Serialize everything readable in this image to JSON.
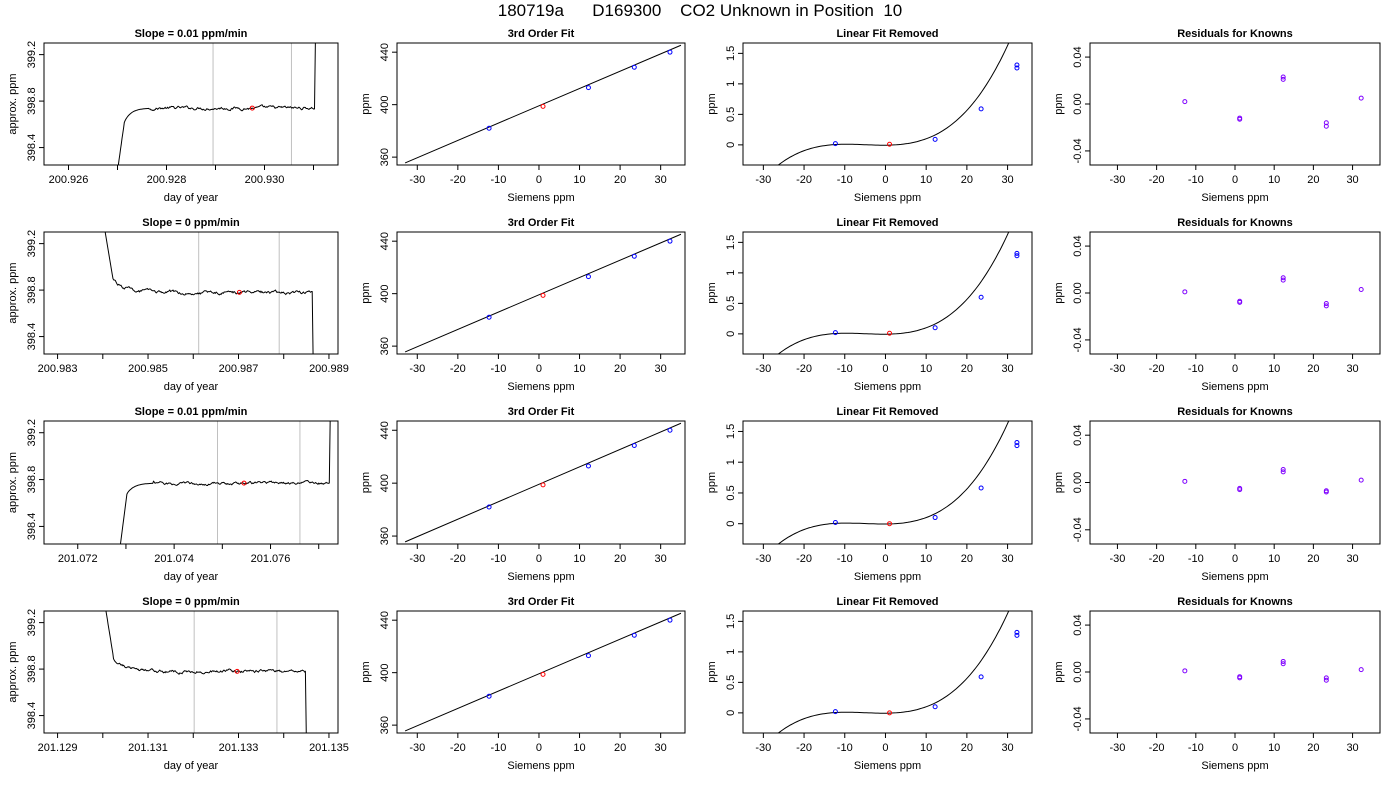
{
  "title": "180719a      D169300    CO2 Unknown in Position  10",
  "colors": {
    "line": "#000000",
    "known_points": "#0000ff",
    "unknown_point": "#ff0000",
    "residual_points": "#7f00ff",
    "reference_lines": "#c0c0c0"
  },
  "chart_data": [
    {
      "row": 1,
      "panel": "trace",
      "type": "line",
      "title": "Slope =  0.01  ppm/min",
      "xlabel": "day of year",
      "ylabel": "approx. ppm",
      "xlim": [
        200.9255,
        200.9315
      ],
      "ylim": [
        398.25,
        399.3
      ],
      "xticks": [
        200.926,
        200.927,
        200.928,
        200.929,
        200.93,
        200.931
      ],
      "xtick_labels": [
        "200.926",
        "",
        "200.928",
        "",
        "200.930",
        ""
      ],
      "yticks": [
        398.4,
        398.8,
        399.2
      ],
      "ytick_labels": [
        "398.4",
        "398.8",
        "399.2"
      ],
      "x_start": 200.927,
      "x_end": 200.93102,
      "rise_level": 398.62,
      "level": 398.74,
      "noise": 0.011,
      "end_spike": "up",
      "ref_lines": [
        200.92895,
        200.93055
      ],
      "point": {
        "x": 200.92975,
        "y": 398.74
      }
    },
    {
      "row": 1,
      "panel": "fit",
      "type": "line",
      "title": "3rd Order Fit",
      "xlabel": "Siemens ppm",
      "ylabel": "ppm",
      "xlim": [
        -35,
        36
      ],
      "ylim": [
        354,
        447
      ],
      "xticks": [
        -30,
        -20,
        -10,
        0,
        10,
        20,
        30
      ],
      "yticks": [
        360,
        400,
        440
      ],
      "line": {
        "x": [
          -33,
          35
        ],
        "y": [
          355.6,
          445.3
        ]
      },
      "known_points": [
        {
          "x": -12.3,
          "y": 382.0
        },
        {
          "x": 12.2,
          "y": 413.0
        },
        {
          "x": 23.5,
          "y": 428.5
        },
        {
          "x": 32.3,
          "y": 440.0
        }
      ],
      "unknown_point": {
        "x": 1.0,
        "y": 398.7
      }
    },
    {
      "row": 1,
      "panel": "linear_removed",
      "type": "line",
      "title": "Linear Fit Removed",
      "xlabel": "Siemens ppm",
      "ylabel": "ppm",
      "xlim": [
        -35,
        36
      ],
      "ylim": [
        -0.33,
        1.67
      ],
      "xticks": [
        -30,
        -20,
        -10,
        0,
        10,
        20,
        30
      ],
      "yticks": [
        0.0,
        0.5,
        1.0,
        1.5
      ],
      "curve_range": [
        -33,
        35
      ],
      "known_points": [
        {
          "x": -12.3,
          "y": 0.02
        },
        {
          "x": 12.2,
          "y": 0.09
        },
        {
          "x": 23.5,
          "y": 0.59
        },
        {
          "x": 32.3,
          "y": 1.26
        },
        {
          "x": 32.3,
          "y": 1.31
        }
      ],
      "unknown_point": {
        "x": 1.0,
        "y": 0.01
      }
    },
    {
      "row": 1,
      "panel": "residuals",
      "type": "scatter",
      "title": "Residuals for Knowns",
      "xlabel": "Siemens ppm",
      "ylabel": "ppm",
      "xlim": [
        -37,
        37
      ],
      "ylim": [
        -0.052,
        0.052
      ],
      "xticks": [
        -30,
        -20,
        -10,
        0,
        10,
        20,
        30
      ],
      "yticks": [
        -0.04,
        0.0,
        0.04
      ],
      "ytick_labels": [
        "-0.04",
        "0.00",
        "0.04"
      ],
      "points": [
        {
          "x": -12.8,
          "y": 0.002
        },
        {
          "x": 1.2,
          "y": -0.012
        },
        {
          "x": 1.2,
          "y": -0.013
        },
        {
          "x": 12.3,
          "y": 0.021
        },
        {
          "x": 12.3,
          "y": 0.023
        },
        {
          "x": 23.3,
          "y": -0.016
        },
        {
          "x": 23.3,
          "y": -0.019
        },
        {
          "x": 32.2,
          "y": 0.005
        }
      ]
    },
    {
      "row": 2,
      "panel": "trace",
      "type": "line",
      "title": "Slope =  0  ppm/min",
      "xlabel": "day of year",
      "ylabel": "approx. ppm",
      "xlim": [
        200.9827,
        200.9892
      ],
      "ylim": [
        398.25,
        399.3
      ],
      "xticks": [
        200.983,
        200.984,
        200.985,
        200.986,
        200.987,
        200.988,
        200.989
      ],
      "xtick_labels": [
        "200.983",
        "",
        "200.985",
        "",
        "200.987",
        "",
        "200.989"
      ],
      "yticks": [
        398.4,
        398.8,
        399.2
      ],
      "ytick_labels": [
        "398.4",
        "398.8",
        "399.2"
      ],
      "x_start": 200.98403,
      "x_end": 200.98863,
      "fall_level": 398.8,
      "level": 398.78,
      "noise": 0.012,
      "end_spike": "down",
      "ref_lines": [
        200.98612,
        200.9879
      ],
      "point": {
        "x": 200.98702,
        "y": 398.78
      }
    },
    {
      "row": 2,
      "panel": "fit",
      "type": "line",
      "title": "3rd Order Fit",
      "xlabel": "Siemens ppm",
      "ylabel": "ppm",
      "xlim": [
        -35,
        36
      ],
      "ylim": [
        354,
        447
      ],
      "xticks": [
        -30,
        -20,
        -10,
        0,
        10,
        20,
        30
      ],
      "yticks": [
        360,
        400,
        440
      ],
      "line": {
        "x": [
          -33,
          35
        ],
        "y": [
          355.6,
          445.3
        ]
      },
      "known_points": [
        {
          "x": -12.3,
          "y": 382.0
        },
        {
          "x": 12.2,
          "y": 413.0
        },
        {
          "x": 23.5,
          "y": 428.5
        },
        {
          "x": 32.3,
          "y": 440.0
        }
      ],
      "unknown_point": {
        "x": 1.0,
        "y": 398.7
      }
    },
    {
      "row": 2,
      "panel": "linear_removed",
      "type": "line",
      "title": "Linear Fit Removed",
      "xlabel": "Siemens ppm",
      "ylabel": "ppm",
      "xlim": [
        -35,
        36
      ],
      "ylim": [
        -0.33,
        1.67
      ],
      "xticks": [
        -30,
        -20,
        -10,
        0,
        10,
        20,
        30
      ],
      "yticks": [
        0.0,
        0.5,
        1.0,
        1.5
      ],
      "curve_range": [
        -33,
        35
      ],
      "known_points": [
        {
          "x": -12.3,
          "y": 0.02
        },
        {
          "x": 12.2,
          "y": 0.1
        },
        {
          "x": 23.5,
          "y": 0.6
        },
        {
          "x": 32.3,
          "y": 1.28
        },
        {
          "x": 32.3,
          "y": 1.32
        }
      ],
      "unknown_point": {
        "x": 1.0,
        "y": 0.01
      }
    },
    {
      "row": 2,
      "panel": "residuals",
      "type": "scatter",
      "title": "Residuals for Knowns",
      "xlabel": "Siemens ppm",
      "ylabel": "ppm",
      "xlim": [
        -37,
        37
      ],
      "ylim": [
        -0.052,
        0.052
      ],
      "xticks": [
        -30,
        -20,
        -10,
        0,
        10,
        20,
        30
      ],
      "yticks": [
        -0.04,
        0.0,
        0.04
      ],
      "ytick_labels": [
        "-0.04",
        "0.00",
        "0.04"
      ],
      "points": [
        {
          "x": -12.8,
          "y": 0.001
        },
        {
          "x": 1.2,
          "y": -0.007
        },
        {
          "x": 1.2,
          "y": -0.008
        },
        {
          "x": 12.3,
          "y": 0.011
        },
        {
          "x": 12.3,
          "y": 0.013
        },
        {
          "x": 23.3,
          "y": -0.009
        },
        {
          "x": 23.3,
          "y": -0.011
        },
        {
          "x": 32.2,
          "y": 0.003
        }
      ]
    },
    {
      "row": 3,
      "panel": "trace",
      "type": "line",
      "title": "Slope =  0.01  ppm/min",
      "xlabel": "day of year",
      "ylabel": "approx. ppm",
      "xlim": [
        201.0713,
        201.0774
      ],
      "ylim": [
        398.25,
        399.3
      ],
      "xticks": [
        201.072,
        201.073,
        201.074,
        201.075,
        201.076,
        201.077
      ],
      "xtick_labels": [
        "201.072",
        "",
        "201.074",
        "",
        "201.076",
        ""
      ],
      "yticks": [
        398.4,
        398.8,
        399.2
      ],
      "ytick_labels": [
        "398.4",
        "398.8",
        "399.2"
      ],
      "x_start": 201.07287,
      "x_end": 201.07722,
      "rise_level": 398.68,
      "level": 398.77,
      "noise": 0.01,
      "end_spike": "up",
      "ref_lines": [
        201.0749,
        201.07661
      ],
      "point": {
        "x": 201.07545,
        "y": 398.77
      }
    },
    {
      "row": 3,
      "panel": "fit",
      "type": "line",
      "title": "3rd Order Fit",
      "xlabel": "Siemens ppm",
      "ylabel": "ppm",
      "xlim": [
        -35,
        36
      ],
      "ylim": [
        354,
        447
      ],
      "xticks": [
        -30,
        -20,
        -10,
        0,
        10,
        20,
        30
      ],
      "yticks": [
        360,
        400,
        440
      ],
      "line": {
        "x": [
          -33,
          35
        ],
        "y": [
          355.6,
          445.3
        ]
      },
      "known_points": [
        {
          "x": -12.3,
          "y": 382.0
        },
        {
          "x": 12.2,
          "y": 413.0
        },
        {
          "x": 23.5,
          "y": 428.5
        },
        {
          "x": 32.3,
          "y": 440.0
        }
      ],
      "unknown_point": {
        "x": 1.0,
        "y": 398.7
      }
    },
    {
      "row": 3,
      "panel": "linear_removed",
      "type": "line",
      "title": "Linear Fit Removed",
      "xlabel": "Siemens ppm",
      "ylabel": "ppm",
      "xlim": [
        -35,
        36
      ],
      "ylim": [
        -0.33,
        1.67
      ],
      "xticks": [
        -30,
        -20,
        -10,
        0,
        10,
        20,
        30
      ],
      "yticks": [
        0.0,
        0.5,
        1.0,
        1.5
      ],
      "curve_range": [
        -33,
        35
      ],
      "known_points": [
        {
          "x": -12.3,
          "y": 0.02
        },
        {
          "x": 12.2,
          "y": 0.1
        },
        {
          "x": 23.5,
          "y": 0.58
        },
        {
          "x": 32.3,
          "y": 1.27
        },
        {
          "x": 32.3,
          "y": 1.32
        }
      ],
      "unknown_point": {
        "x": 1.0,
        "y": 0.0
      }
    },
    {
      "row": 3,
      "panel": "residuals",
      "type": "scatter",
      "title": "Residuals for Knowns",
      "xlabel": "Siemens ppm",
      "ylabel": "ppm",
      "xlim": [
        -37,
        37
      ],
      "ylim": [
        -0.052,
        0.052
      ],
      "xticks": [
        -30,
        -20,
        -10,
        0,
        10,
        20,
        30
      ],
      "yticks": [
        -0.04,
        0.0,
        0.04
      ],
      "ytick_labels": [
        "-0.04",
        "0.00",
        "0.04"
      ],
      "points": [
        {
          "x": -12.8,
          "y": 0.001
        },
        {
          "x": 1.2,
          "y": -0.005
        },
        {
          "x": 1.2,
          "y": -0.006
        },
        {
          "x": 12.3,
          "y": 0.009
        },
        {
          "x": 12.3,
          "y": 0.011
        },
        {
          "x": 23.3,
          "y": -0.007
        },
        {
          "x": 23.3,
          "y": -0.008
        },
        {
          "x": 32.2,
          "y": 0.002
        }
      ]
    },
    {
      "row": 4,
      "panel": "trace",
      "type": "line",
      "title": "Slope =  0  ppm/min",
      "xlabel": "day of year",
      "ylabel": "approx. ppm",
      "xlim": [
        201.1287,
        201.1352
      ],
      "ylim": [
        398.25,
        399.3
      ],
      "xticks": [
        201.129,
        201.13,
        201.131,
        201.132,
        201.133,
        201.134,
        201.135
      ],
      "xtick_labels": [
        "201.129",
        "",
        "201.131",
        "",
        "201.133",
        "",
        "201.135"
      ],
      "yticks": [
        398.4,
        398.8,
        399.2
      ],
      "ytick_labels": [
        "398.4",
        "398.8",
        "399.2"
      ],
      "x_start": 201.13005,
      "x_end": 201.13448,
      "fall_level": 398.8,
      "level": 398.78,
      "noise": 0.011,
      "end_spike": "down",
      "ref_lines": [
        201.13202,
        201.13385
      ],
      "point": {
        "x": 201.13297,
        "y": 398.78
      }
    },
    {
      "row": 4,
      "panel": "fit",
      "type": "line",
      "title": "3rd Order Fit",
      "xlabel": "Siemens ppm",
      "ylabel": "ppm",
      "xlim": [
        -35,
        36
      ],
      "ylim": [
        354,
        447
      ],
      "xticks": [
        -30,
        -20,
        -10,
        0,
        10,
        20,
        30
      ],
      "yticks": [
        360,
        400,
        440
      ],
      "line": {
        "x": [
          -33,
          35
        ],
        "y": [
          355.6,
          445.3
        ]
      },
      "known_points": [
        {
          "x": -12.3,
          "y": 382.0
        },
        {
          "x": 12.2,
          "y": 413.0
        },
        {
          "x": 23.5,
          "y": 428.5
        },
        {
          "x": 32.3,
          "y": 440.0
        }
      ],
      "unknown_point": {
        "x": 1.0,
        "y": 398.7
      }
    },
    {
      "row": 4,
      "panel": "linear_removed",
      "type": "line",
      "title": "Linear Fit Removed",
      "xlabel": "Siemens ppm",
      "ylabel": "ppm",
      "xlim": [
        -35,
        36
      ],
      "ylim": [
        -0.33,
        1.67
      ],
      "xticks": [
        -30,
        -20,
        -10,
        0,
        10,
        20,
        30
      ],
      "yticks": [
        0.0,
        0.5,
        1.0,
        1.5
      ],
      "curve_range": [
        -33,
        35
      ],
      "known_points": [
        {
          "x": -12.3,
          "y": 0.02
        },
        {
          "x": 12.2,
          "y": 0.1
        },
        {
          "x": 23.5,
          "y": 0.59
        },
        {
          "x": 32.3,
          "y": 1.27
        },
        {
          "x": 32.3,
          "y": 1.32
        }
      ],
      "unknown_point": {
        "x": 1.0,
        "y": 0.0
      }
    },
    {
      "row": 4,
      "panel": "residuals",
      "type": "scatter",
      "title": "Residuals for Knowns",
      "xlabel": "Siemens ppm",
      "ylabel": "ppm",
      "xlim": [
        -37,
        37
      ],
      "ylim": [
        -0.052,
        0.052
      ],
      "xticks": [
        -30,
        -20,
        -10,
        0,
        10,
        20,
        30
      ],
      "yticks": [
        -0.04,
        0.0,
        0.04
      ],
      "ytick_labels": [
        "-0.04",
        "0.00",
        "0.04"
      ],
      "points": [
        {
          "x": -12.8,
          "y": 0.001
        },
        {
          "x": 1.2,
          "y": -0.004
        },
        {
          "x": 1.2,
          "y": -0.005
        },
        {
          "x": 12.3,
          "y": 0.007
        },
        {
          "x": 12.3,
          "y": 0.009
        },
        {
          "x": 23.3,
          "y": -0.005
        },
        {
          "x": 23.3,
          "y": -0.007
        },
        {
          "x": 32.2,
          "y": 0.002
        }
      ]
    }
  ]
}
